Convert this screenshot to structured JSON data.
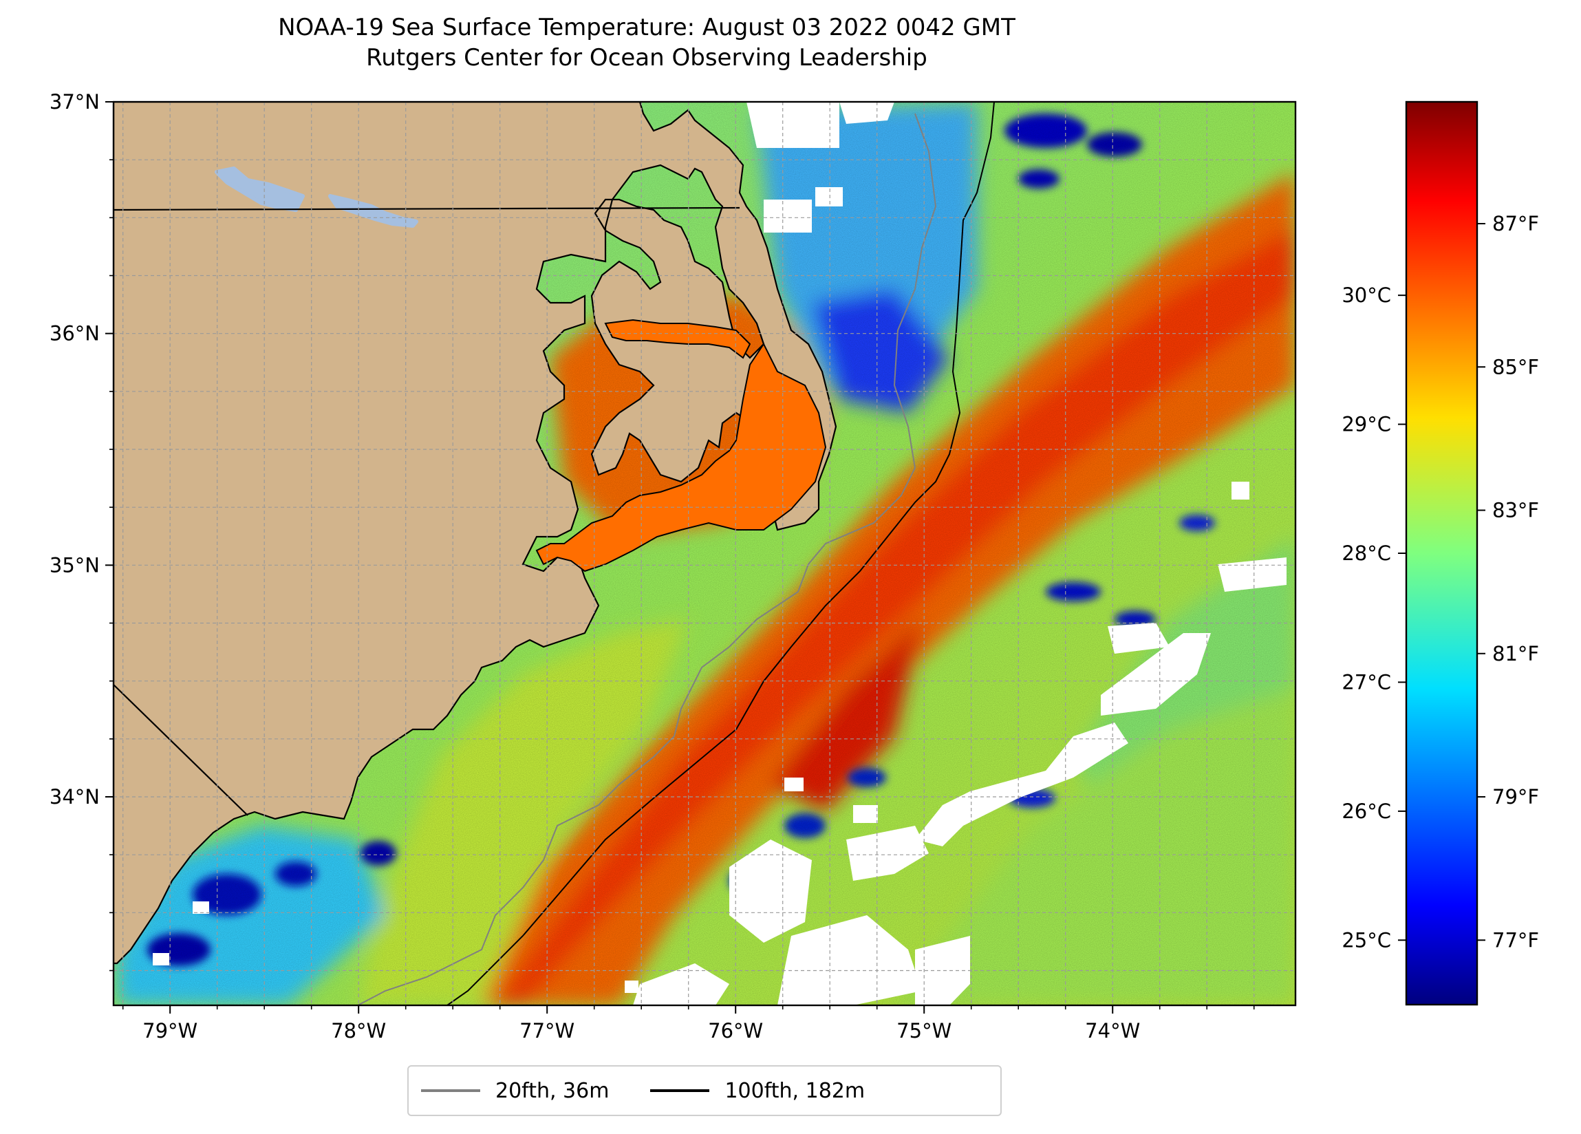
{
  "title": {
    "line1": "NOAA-19 Sea Surface Temperature: August 03 2022 0042 GMT",
    "line2": "Rutgers Center for Ocean Observing Leadership"
  },
  "map": {
    "extent": {
      "lon_min": -79.3,
      "lon_max": -73.03,
      "lat_min": 33.1,
      "lat_max": 37.0
    },
    "lon_ticks": [
      {
        "value": -79,
        "label": "79°W"
      },
      {
        "value": -78,
        "label": "78°W"
      },
      {
        "value": -77,
        "label": "77°W"
      },
      {
        "value": -76,
        "label": "76°W"
      },
      {
        "value": -75,
        "label": "75°W"
      },
      {
        "value": -74,
        "label": "74°W"
      }
    ],
    "lat_ticks": [
      {
        "value": 37,
        "label": "37°N"
      },
      {
        "value": 36,
        "label": "36°N"
      },
      {
        "value": 35,
        "label": "35°N"
      },
      {
        "value": 34,
        "label": "34°N"
      }
    ],
    "gridlines": true,
    "colors": {
      "land": "#d2b48c",
      "lake": "#a5bfe0",
      "cloud_mask": "#ffffff",
      "grid": "#9a9a9a"
    }
  },
  "colorbar": {
    "colormap": "jet",
    "range_f": [
      76.1,
      88.7
    ],
    "celsius_ticks": [
      {
        "value": 30,
        "label": "30°C"
      },
      {
        "value": 29,
        "label": "29°C"
      },
      {
        "value": 28,
        "label": "28°C"
      },
      {
        "value": 27,
        "label": "27°C"
      },
      {
        "value": 26,
        "label": "26°C"
      },
      {
        "value": 25,
        "label": "25°C"
      }
    ],
    "fahrenheit_ticks": [
      {
        "value": 87,
        "label": "87°F"
      },
      {
        "value": 85,
        "label": "85°F"
      },
      {
        "value": 83,
        "label": "83°F"
      },
      {
        "value": 81,
        "label": "81°F"
      },
      {
        "value": 79,
        "label": "79°F"
      },
      {
        "value": 77,
        "label": "77°F"
      }
    ]
  },
  "legend": {
    "items": [
      {
        "label": "20fth, 36m",
        "color": "#808080"
      },
      {
        "label": "100fth, 182m",
        "color": "#000000"
      }
    ]
  }
}
